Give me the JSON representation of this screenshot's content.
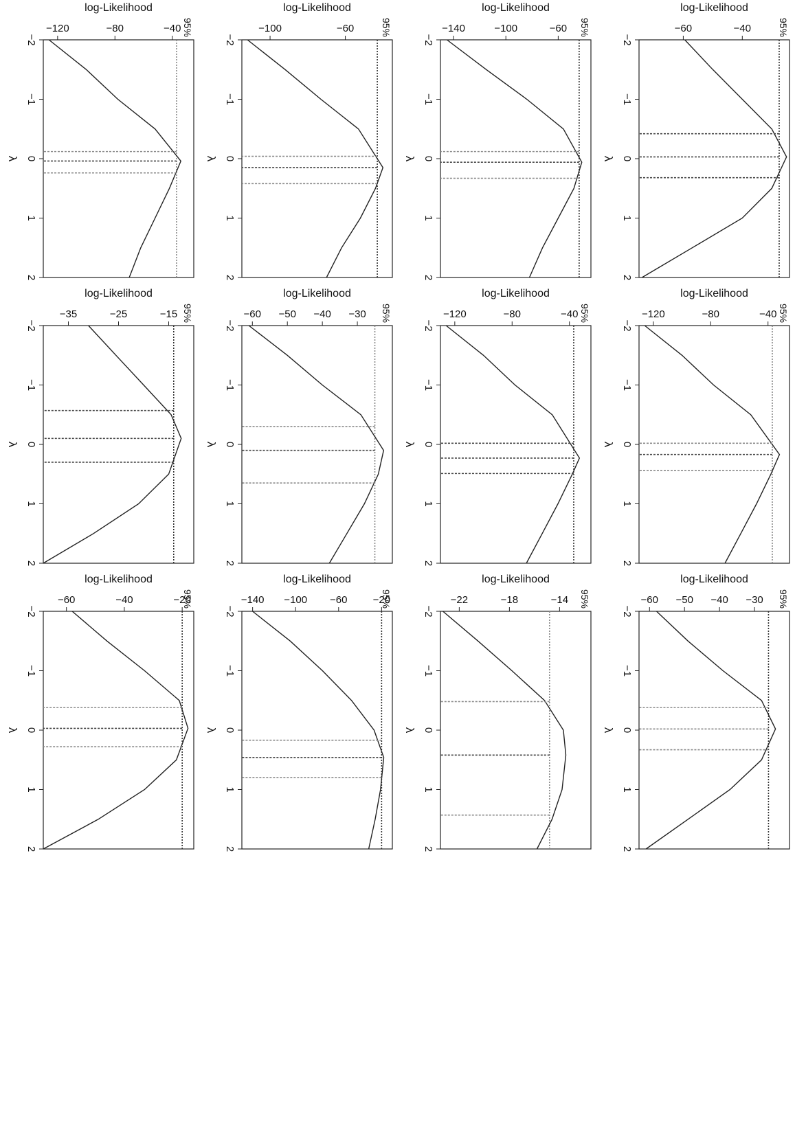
{
  "layout": {
    "rows": 4,
    "cols": 3,
    "rotation_deg": 90
  },
  "colors": {
    "curve": "#222222",
    "ref_line": "#333333",
    "ci_lines": "#444444",
    "alt_lines": "#888888",
    "frame": "#222222"
  },
  "chart_data": [
    {
      "type": "line",
      "xlabel": "λ",
      "ylabel": "log-Likelihood",
      "xlim": [
        -2,
        2
      ],
      "ylim": [
        -75,
        -24
      ],
      "xticks": [
        "−2",
        "−1",
        "0",
        "1",
        "2"
      ],
      "yticks": [
        -60,
        -40
      ],
      "ytick_labels": [
        "−60",
        "−40"
      ],
      "annotation": "95%",
      "ref": -27.5,
      "ref_style": "dark",
      "ci": [
        -0.42,
        -0.03,
        0.32
      ],
      "ci_style": "dark",
      "series": [
        {
          "x": [
            -2,
            -1.5,
            -1,
            -0.5,
            -0.03,
            0.5,
            1,
            1.5,
            2
          ],
          "y": [
            -59.5,
            -50,
            -40,
            -30,
            -25,
            -30,
            -40,
            -57,
            -74
          ]
        }
      ]
    },
    {
      "type": "line",
      "xlabel": "λ",
      "ylabel": "log-Likelihood",
      "xlim": [
        -2,
        2
      ],
      "ylim": [
        -130,
        -25
      ],
      "xticks": [
        "−2",
        "−1",
        "0",
        "1",
        "2"
      ],
      "yticks": [
        -120,
        -80,
        -40
      ],
      "ytick_labels": [
        "−120",
        "−80",
        "−40"
      ],
      "annotation": "95%",
      "ref": -37,
      "ref_style": "light",
      "ci": [
        -0.02,
        0.17,
        0.44
      ],
      "ci_style": "mixed",
      "series": [
        {
          "x": [
            -2,
            -1.5,
            -1,
            -0.5,
            0.17,
            0.5,
            1,
            1.5,
            2
          ],
          "y": [
            -126,
            -100,
            -78,
            -52,
            -32,
            -38,
            -48,
            -59,
            -70
          ]
        }
      ]
    },
    {
      "type": "line",
      "xlabel": "λ",
      "ylabel": "log-Likelihood",
      "xlim": [
        -2,
        2
      ],
      "ylim": [
        -63,
        -20
      ],
      "xticks": [
        "−2",
        "−1",
        "0",
        "1",
        "2"
      ],
      "yticks": [
        -60,
        -50,
        -40,
        -30
      ],
      "ytick_labels": [
        "−60",
        "−50",
        "−40",
        "−30"
      ],
      "annotation": "95%",
      "ref": -26,
      "ref_style": "dark",
      "ci": [
        -0.38,
        -0.02,
        0.33
      ],
      "ci_style": "light",
      "series": [
        {
          "x": [
            -2,
            -1.5,
            -1,
            -0.5,
            -0.02,
            0.5,
            1,
            1.5,
            2
          ],
          "y": [
            -58,
            -49,
            -39,
            -28,
            -24,
            -28,
            -37,
            -49,
            -61
          ]
        }
      ]
    },
    {
      "type": "line",
      "xlabel": "λ",
      "ylabel": "log-Likelihood",
      "xlim": [
        -2,
        2
      ],
      "ylim": [
        -150,
        -35
      ],
      "xticks": [
        "−2",
        "−1",
        "0",
        "1",
        "2"
      ],
      "yticks": [
        -140,
        -100,
        -60
      ],
      "ytick_labels": [
        "−140",
        "−100",
        "−60"
      ],
      "annotation": "95%",
      "ref": -44,
      "ref_style": "dark",
      "ci": [
        -0.12,
        0.06,
        0.33
      ],
      "ci_style": "mixed",
      "series": [
        {
          "x": [
            -2,
            -1.5,
            -1,
            -0.5,
            0.06,
            0.5,
            1,
            1.5,
            2
          ],
          "y": [
            -145,
            -115,
            -84,
            -56,
            -42,
            -48,
            -60,
            -72,
            -82
          ]
        }
      ]
    },
    {
      "type": "line",
      "xlabel": "λ",
      "ylabel": "log-Likelihood",
      "xlim": [
        -2,
        2
      ],
      "ylim": [
        -130,
        -25
      ],
      "xticks": [
        "−2",
        "−1",
        "0",
        "1",
        "2"
      ],
      "yticks": [
        -120,
        -80,
        -40
      ],
      "ytick_labels": [
        "−120",
        "−80",
        "−40"
      ],
      "annotation": "95%",
      "ref": -37,
      "ref_style": "dark",
      "ci": [
        -0.02,
        0.23,
        0.49
      ],
      "ci_style": "dark",
      "series": [
        {
          "x": [
            -2,
            -1.5,
            -1,
            -0.5,
            0.23,
            0.5,
            1,
            1.5,
            2
          ],
          "y": [
            -126,
            -100,
            -78,
            -52,
            -33,
            -38,
            -48,
            -59,
            -70
          ]
        }
      ]
    },
    {
      "type": "line",
      "xlabel": "λ",
      "ylabel": "log-Likelihood",
      "xlim": [
        -2,
        2
      ],
      "ylim": [
        -23.5,
        -11.5
      ],
      "xticks": [
        "−2",
        "−1",
        "0",
        "1",
        "2"
      ],
      "yticks": [
        -22,
        -18,
        -14
      ],
      "ytick_labels": [
        "−22",
        "−18",
        "−14"
      ],
      "annotation": "95%",
      "ref": -14.8,
      "ref_style": "light",
      "ci": [
        -0.48,
        0.42,
        1.43
      ],
      "ci_style": "mixed",
      "series": [
        {
          "x": [
            -2,
            -1.5,
            -1,
            -0.5,
            0,
            0.42,
            1,
            1.5,
            2
          ],
          "y": [
            -23.3,
            -20.5,
            -17.8,
            -15.2,
            -13.7,
            -13.5,
            -13.8,
            -14.6,
            -15.8
          ]
        }
      ]
    },
    {
      "type": "line",
      "xlabel": "λ",
      "ylabel": "log-Likelihood",
      "xlim": [
        -2,
        2
      ],
      "ylim": [
        -115,
        -35
      ],
      "xticks": [
        "−2",
        "−1",
        "0",
        "1",
        "2"
      ],
      "yticks": [
        -100,
        -60
      ],
      "ytick_labels": [
        "−100",
        "−60"
      ],
      "annotation": "95%",
      "ref": -43,
      "ref_style": "dark",
      "ci": [
        -0.04,
        0.15,
        0.42
      ],
      "ci_style": "mixed",
      "series": [
        {
          "x": [
            -2,
            -1.5,
            -1,
            -0.5,
            0.15,
            0.5,
            1,
            1.5,
            2
          ],
          "y": [
            -112,
            -92,
            -73,
            -53,
            -40,
            -44,
            -52,
            -62,
            -70
          ]
        }
      ]
    },
    {
      "type": "line",
      "xlabel": "λ",
      "ylabel": "log-Likelihood",
      "xlim": [
        -2,
        2
      ],
      "ylim": [
        -63,
        -20
      ],
      "xticks": [
        "−2",
        "−1",
        "0",
        "1",
        "2"
      ],
      "yticks": [
        -60,
        -50,
        -40,
        -30
      ],
      "ytick_labels": [
        "−60",
        "−50",
        "−40",
        "−30"
      ],
      "annotation": "95%",
      "ref": -25,
      "ref_style": "light",
      "ci": [
        -0.3,
        0.1,
        0.65
      ],
      "ci_style": "mixed",
      "series": [
        {
          "x": [
            -2,
            -1.5,
            -1,
            -0.5,
            0.1,
            0.5,
            1,
            1.5,
            2
          ],
          "y": [
            -61,
            -50,
            -40,
            -29,
            -22.5,
            -24,
            -28,
            -33,
            -38
          ]
        }
      ]
    },
    {
      "type": "line",
      "xlabel": "λ",
      "ylabel": "log-Likelihood",
      "xlim": [
        -2,
        2
      ],
      "ylim": [
        -150,
        -10
      ],
      "xticks": [
        "−2",
        "−1",
        "0",
        "1",
        "2"
      ],
      "yticks": [
        -140,
        -100,
        -60,
        -20
      ],
      "ytick_labels": [
        "−140",
        "−100",
        "−60",
        "−20"
      ],
      "annotation": "95%",
      "ref": -20,
      "ref_style": "dark",
      "ci": [
        0.17,
        0.46,
        0.8
      ],
      "ci_style": "mixed",
      "series": [
        {
          "x": [
            -2,
            -1.5,
            -1,
            -0.5,
            0,
            0.46,
            1,
            1.5,
            2
          ],
          "y": [
            -140,
            -105,
            -75,
            -48,
            -27,
            -18,
            -21,
            -26,
            -32
          ]
        }
      ]
    },
    {
      "type": "line",
      "xlabel": "λ",
      "ylabel": "log-Likelihood",
      "xlim": [
        -2,
        2
      ],
      "ylim": [
        -130,
        -25
      ],
      "xticks": [
        "−2",
        "−1",
        "0",
        "1",
        "2"
      ],
      "yticks": [
        -120,
        -80,
        -40
      ],
      "ytick_labels": [
        "−120",
        "−80",
        "−40"
      ],
      "annotation": "95%",
      "ref": -37,
      "ref_style": "light",
      "ci": [
        -0.12,
        0.04,
        0.24
      ],
      "ci_style": "mixed",
      "series": [
        {
          "x": [
            -2,
            -1.5,
            -1,
            -0.5,
            0.04,
            0.5,
            1,
            1.5,
            2
          ],
          "y": [
            -126,
            -100,
            -78,
            -52,
            -34,
            -42,
            -52,
            -62,
            -70
          ]
        }
      ]
    },
    {
      "type": "line",
      "xlabel": "λ",
      "ylabel": "log-Likelihood",
      "xlim": [
        -2,
        2
      ],
      "ylim": [
        -40,
        -10
      ],
      "xticks": [
        "−2",
        "−1",
        "0",
        "1",
        "2"
      ],
      "yticks": [
        -35,
        -25,
        -15
      ],
      "ytick_labels": [
        "−35",
        "−25",
        "−15"
      ],
      "annotation": "95%",
      "ref": -14,
      "ref_style": "dark",
      "ci": [
        -0.57,
        -0.1,
        0.3
      ],
      "ci_style": "dark",
      "series": [
        {
          "x": [
            -2,
            -1.5,
            -1,
            -0.5,
            -0.1,
            0.5,
            1,
            1.5,
            2
          ],
          "y": [
            -31,
            -25.5,
            -20,
            -14.5,
            -12.5,
            -15,
            -21,
            -30,
            -40
          ]
        }
      ]
    },
    {
      "type": "line",
      "xlabel": "λ",
      "ylabel": "log-Likelihood",
      "xlim": [
        -2,
        2
      ],
      "ylim": [
        -68,
        -16
      ],
      "xticks": [
        "−2",
        "−1",
        "0",
        "1",
        "2"
      ],
      "yticks": [
        -60,
        -40,
        -20
      ],
      "ytick_labels": [
        "−60",
        "−40",
        "−20"
      ],
      "annotation": "95%",
      "ref": -20,
      "ref_style": "dark",
      "ci": [
        -0.38,
        -0.03,
        0.28
      ],
      "ci_style": "mixed",
      "series": [
        {
          "x": [
            -2,
            -1.5,
            -1,
            -0.5,
            -0.03,
            0.5,
            1,
            1.5,
            2
          ],
          "y": [
            -58,
            -46,
            -33,
            -21,
            -18,
            -22,
            -33,
            -49,
            -68
          ]
        }
      ]
    }
  ]
}
